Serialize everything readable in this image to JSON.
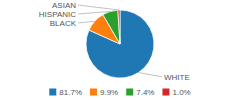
{
  "chart_data": {
    "type": "pie",
    "categories": [
      "WHITE",
      "BLACK",
      "HISPANIC",
      "ASIAN"
    ],
    "values": [
      81.7,
      9.9,
      7.4,
      1.0
    ],
    "value_labels": [
      "81.7%",
      "9.9%",
      "7.4%",
      "1.0%"
    ],
    "legend": "bottom"
  }
}
